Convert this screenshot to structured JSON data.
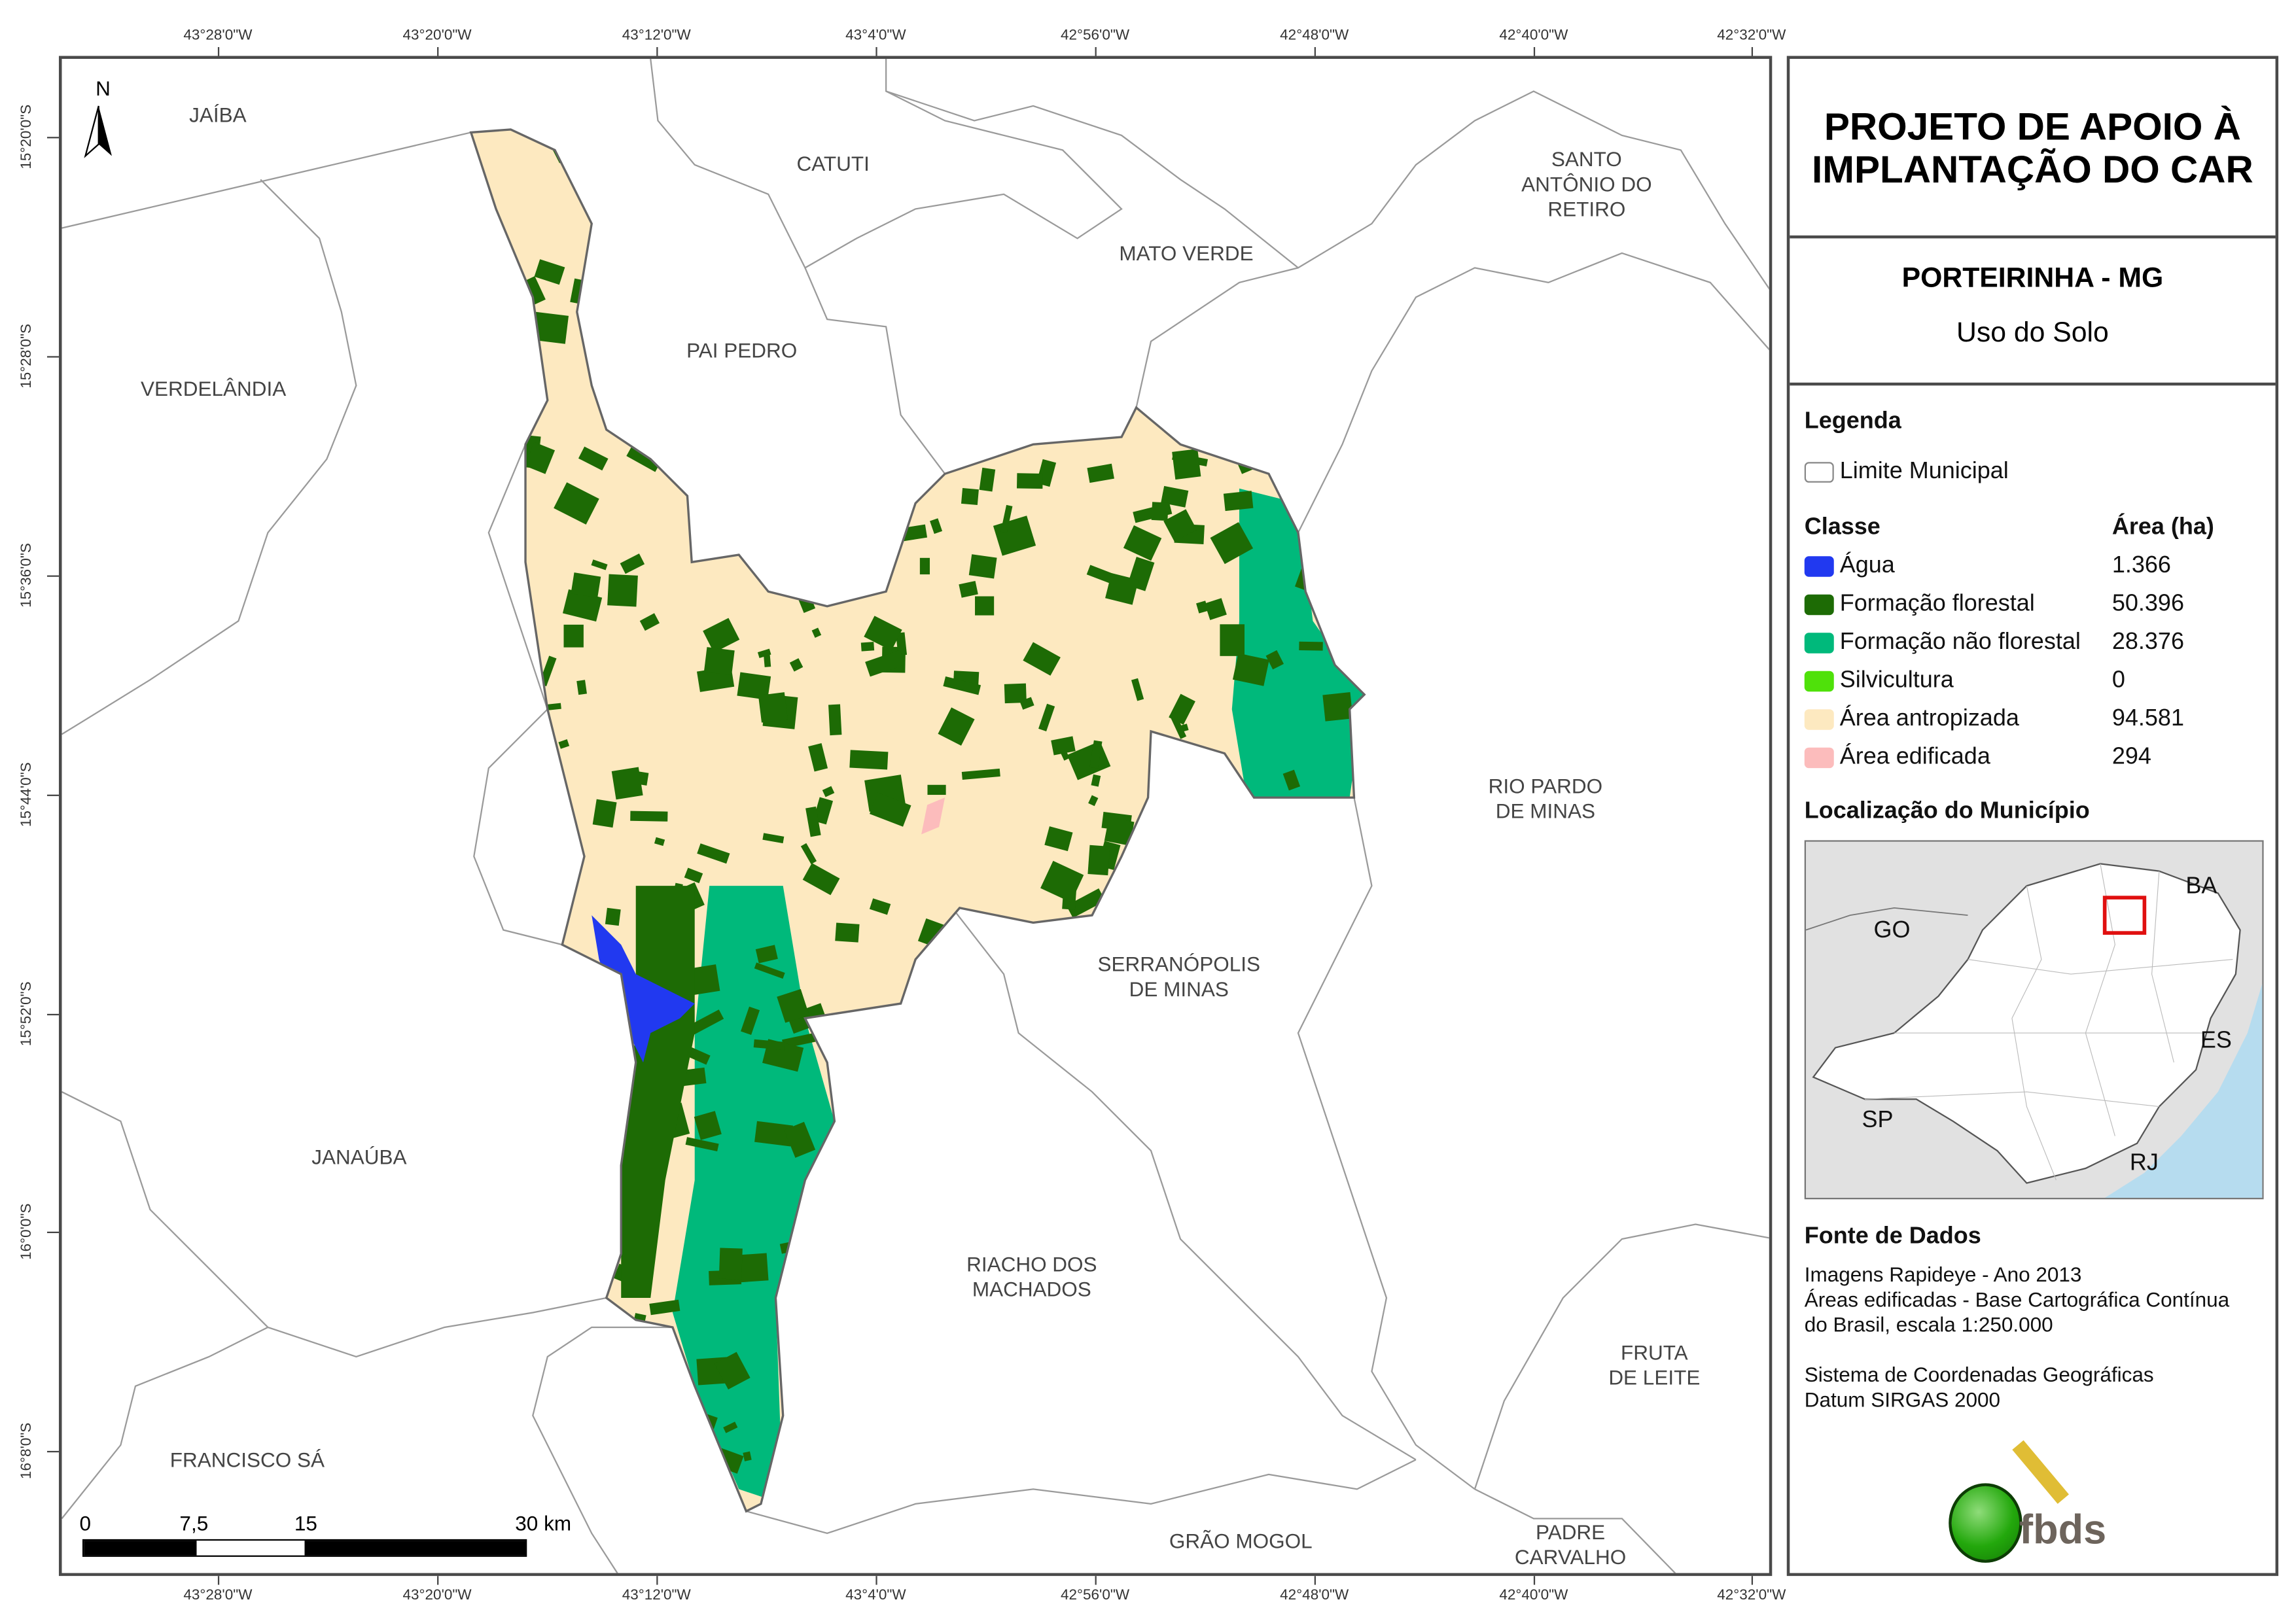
{
  "title": "PROJETO DE APOIO À IMPLANTAÇÃO DO CAR",
  "municipality": "PORTEIRINHA - MG",
  "subtitle": "Uso do Solo",
  "legend": {
    "heading": "Legenda",
    "boundary_label": "Limite Municipal",
    "class_header": "Classe",
    "area_header": "Área (ha)",
    "classes": [
      {
        "label": "Água",
        "area": "1.366",
        "color": "#2139f0"
      },
      {
        "label": "Formação florestal",
        "area": "50.396",
        "color": "#1d6b05"
      },
      {
        "label": "Formação não florestal",
        "area": "28.376",
        "color": "#00b97b"
      },
      {
        "label": "Silvicultura",
        "area": "0",
        "color": "#4fe10a"
      },
      {
        "label": "Área antropizada",
        "area": "94.581",
        "color": "#fde9c0"
      },
      {
        "label": "Área edificada",
        "area": "294",
        "color": "#fcbcbc"
      }
    ]
  },
  "location": {
    "heading": "Localização do Município",
    "labels": [
      "GO",
      "BA",
      "ES",
      "SP",
      "RJ"
    ],
    "highlight_color": "#e01010"
  },
  "sources": {
    "heading": "Fonte de Dados",
    "lines": "Imagens Rapideye - Ano 2013\nÁreas edificadas - Base Cartográfica Contínua\ndo Brasil, escala 1:250.000\n\nSistema de Coordenadas Geográficas\nDatum SIRGAS 2000"
  },
  "logo_text": "fbds",
  "north_label": "N",
  "longitude_ticks": [
    "43°28'0\"W",
    "43°20'0\"W",
    "43°12'0\"W",
    "43°4'0\"W",
    "42°56'0\"W",
    "42°48'0\"W",
    "42°40'0\"W",
    "42°32'0\"W"
  ],
  "latitude_ticks": [
    "15°20'0\"S",
    "15°28'0\"S",
    "15°36'0\"S",
    "15°44'0\"S",
    "15°52'0\"S",
    "16°0'0\"S",
    "16°8'0\"S"
  ],
  "scale_bar": {
    "labels": [
      "0",
      "7,5",
      "15",
      "30 km"
    ]
  },
  "places": [
    "JAÍBA",
    "CATUTI",
    "SANTO\nANTÔNIO DO\nRETIRO",
    "MATO VERDE",
    "PAI PEDRO",
    "VERDELÂNDIA",
    "RIO PARDO\nDE MINAS",
    "SERRANÓPOLIS\nDE MINAS",
    "JANAÚBA",
    "RIACHO DOS\nMACHADOS",
    "FRUTA\nDE LEITE",
    "FRANCISCO SÁ",
    "GRÃO MOGOL",
    "PADRE\nCARVALHO"
  ]
}
